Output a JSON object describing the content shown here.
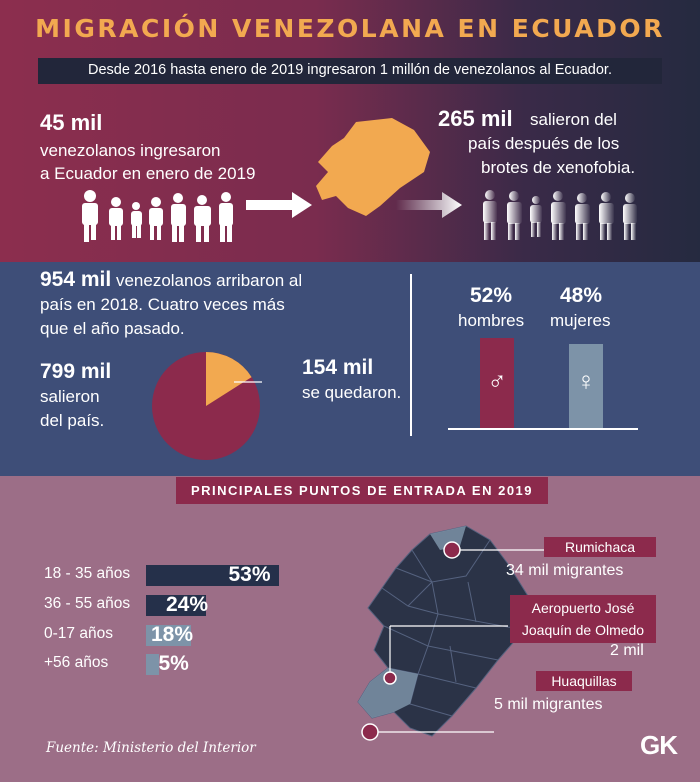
{
  "title": "MIGRACIÓN VENEZOLANA EN ECUADOR",
  "subtitle": "Desde 2016 hasta enero de 2019 ingresaron 1 millón de venezolanos al Ecuador.",
  "entered": {
    "count": "45 mil",
    "line1": "venezolanos ingresaron",
    "line2": "a Ecuador en enero de 2019"
  },
  "left": {
    "count": "265 mil",
    "line1": "salieron del",
    "line2": "país después de los",
    "line3": "brotes de xenofobia."
  },
  "arrived_2018": {
    "count": "954 mil",
    "line1": "venezolanos arribaron al",
    "line2": "país en 2018. Cuatro veces más",
    "line3": "que el año pasado."
  },
  "pie": {
    "left_count": "799 mil",
    "left_line1": "salieron",
    "left_line2": "del país.",
    "stayed_count": "154 mil",
    "stayed_text": "se quedaron.",
    "stayed_fraction": 0.16
  },
  "gender": {
    "men_pct": "52%",
    "men_label": "hombres",
    "women_pct": "48%",
    "women_label": "mujeres",
    "male_symbol": "♂",
    "female_symbol": "♀"
  },
  "entry_points_title": "PRINCIPALES PUNTOS DE ENTRADA EN 2019",
  "ages": [
    {
      "label": "18 - 35 años",
      "pct": "53%",
      "value": 53
    },
    {
      "label": "36 - 55 años",
      "pct": "24%",
      "value": 24
    },
    {
      "label": "0-17 años",
      "pct": "18%",
      "value": 18
    },
    {
      "label": "+56 años",
      "pct": "5%",
      "value": 5
    }
  ],
  "points": {
    "rumichaca": {
      "name": "Rumichaca",
      "count": "34 mil migrantes"
    },
    "airport": {
      "name_line1": "Aeropuerto José",
      "name_line2": "Joaquín de Olmedo",
      "count": "2 mil"
    },
    "huaquillas": {
      "name": "Huaquillas",
      "count": "5 mil migrantes"
    }
  },
  "source": "Fuente: Ministerio del Interior",
  "logo": "GK",
  "colors": {
    "accent": "#f2a950",
    "maroon": "#8c2a4c",
    "navy": "#25304a",
    "male_bar": "#8c2a4c",
    "female_bar": "#7d93a8"
  }
}
